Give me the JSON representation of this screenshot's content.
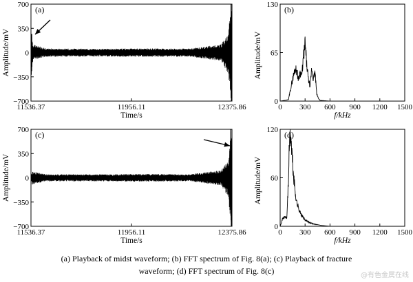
{
  "chart_data": [
    {
      "panel": "(a)",
      "type": "line",
      "xlabel": "Time/s",
      "ylabel": "Amplitude/mV",
      "xlim": [
        11536.37,
        12375.86
      ],
      "ylim": [
        -700,
        700
      ],
      "xticks": [
        "11536.37",
        "11956.11",
        "12375.86"
      ],
      "yticks": [
        "700",
        "350",
        "0",
        "−350",
        "−700"
      ],
      "annotation": "arrow pointing to initial burst near 11536 s",
      "series": [
        {
          "description": "continuous noise band about ±60 mV, spikes to ~ −320 / +280 mV near start, large burst to ~ ±700 mV at end",
          "x": [
            11536.37,
            11540,
            11545,
            11600,
            11800,
            12000,
            12200,
            12330,
            12360,
            12372,
            12375.86
          ],
          "y_max": [
            60,
            280,
            120,
            60,
            55,
            60,
            58,
            120,
            260,
            700,
            700
          ],
          "y_min": [
            -60,
            -320,
            -100,
            -60,
            -55,
            -60,
            -58,
            -120,
            -300,
            -700,
            -700
          ]
        }
      ]
    },
    {
      "panel": "(b)",
      "type": "line",
      "xlabel": "f/kHz",
      "ylabel": "Amplitude/mV",
      "xlim": [
        0,
        1500
      ],
      "ylim": [
        0,
        130
      ],
      "xticks": [
        "0",
        "300",
        "600",
        "900",
        "1200",
        "1500"
      ],
      "yticks": [
        "130",
        "65",
        "0"
      ],
      "series": [
        {
          "x": [
            0,
            100,
            140,
            180,
            200,
            220,
            240,
            260,
            280,
            300,
            320,
            340,
            360,
            380,
            400,
            420,
            440,
            460,
            480,
            600,
            1500
          ],
          "y": [
            0,
            2,
            25,
            45,
            42,
            30,
            40,
            35,
            60,
            80,
            50,
            30,
            20,
            45,
            30,
            40,
            10,
            4,
            1,
            0,
            0
          ]
        }
      ]
    },
    {
      "panel": "(c)",
      "type": "line",
      "xlabel": "Time/s",
      "ylabel": "Amplitude/mV",
      "xlim": [
        11536.37,
        12375.86
      ],
      "ylim": [
        -700,
        700
      ],
      "xticks": [
        "11536.37",
        "11956.11",
        "12375.86"
      ],
      "yticks": [
        "700",
        "350",
        "0",
        "−350",
        "−700"
      ],
      "annotation": "arrow pointing to fracture burst near 12370 s",
      "series": [
        {
          "description": "noise band about ±50 mV, large fracture burst to ~ ±700 mV near end",
          "x": [
            11536.37,
            11545,
            11600,
            11800,
            12000,
            12200,
            12330,
            12360,
            12372,
            12375.86
          ],
          "y_max": [
            50,
            90,
            50,
            50,
            55,
            50,
            110,
            250,
            700,
            600
          ],
          "y_min": [
            -50,
            -90,
            -50,
            -50,
            -55,
            -50,
            -110,
            -280,
            -700,
            -600
          ]
        }
      ]
    },
    {
      "panel": "(d)",
      "type": "line",
      "xlabel": "f/kHz",
      "ylabel": "Amplitude/mV",
      "xlim": [
        0,
        1500
      ],
      "ylim": [
        0,
        120
      ],
      "xticks": [
        "0",
        "300",
        "600",
        "900",
        "1200",
        "1500"
      ],
      "yticks": [
        "120",
        "60",
        "0"
      ],
      "series": [
        {
          "x": [
            0,
            30,
            60,
            80,
            100,
            110,
            120,
            130,
            140,
            160,
            180,
            200,
            250,
            300,
            350,
            400,
            500,
            600,
            1500
          ],
          "y": [
            0,
            10,
            12,
            10,
            60,
            100,
            118,
            112,
            95,
            65,
            45,
            30,
            15,
            8,
            5,
            3,
            1,
            0,
            0
          ]
        }
      ]
    }
  ],
  "caption": {
    "line1": "(a) Playback of midst waveform; (b) FFT spectrum of Fig. 8(a); (c) Playback of fracture",
    "line2": "waveform; (d) FFT spectrum of Fig. 8(c)"
  },
  "watermark": "@有色金属在线"
}
